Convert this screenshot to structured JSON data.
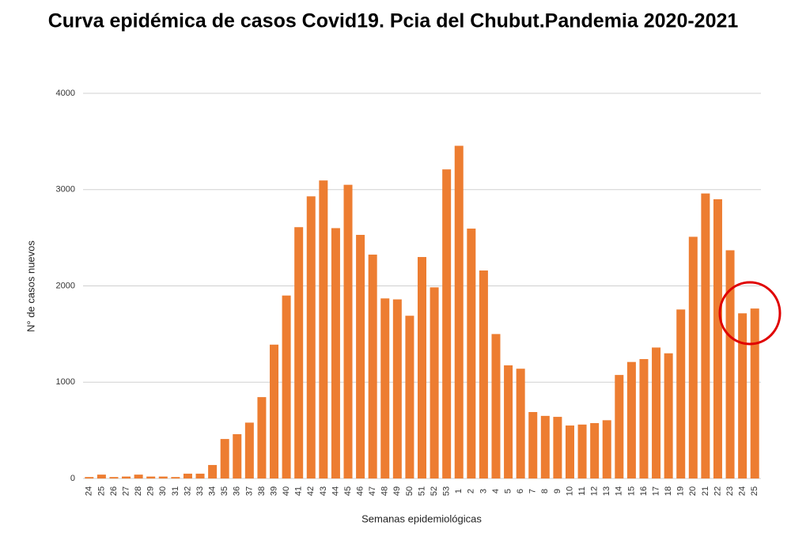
{
  "chart_data": {
    "type": "bar",
    "title": "Curva epidémica de casos Covid19. Pcia del Chubut.Pandemia 2020-2021",
    "x_label": "Semanas epidemiológicas",
    "y_label": "N° de casos nuevos",
    "categories": [
      "24",
      "25",
      "26",
      "27",
      "28",
      "29",
      "30",
      "31",
      "32",
      "33",
      "34",
      "35",
      "36",
      "37",
      "38",
      "39",
      "40",
      "41",
      "42",
      "43",
      "44",
      "45",
      "46",
      "47",
      "48",
      "49",
      "50",
      "51",
      "52",
      "53",
      "1",
      "2",
      "3",
      "4",
      "5",
      "6",
      "7",
      "8",
      "9",
      "10",
      "11",
      "12",
      "13",
      "14",
      "15",
      "16",
      "17",
      "18",
      "19",
      "20",
      "21",
      "22",
      "23",
      "24",
      "25"
    ],
    "values": [
      15,
      40,
      15,
      20,
      40,
      20,
      20,
      15,
      50,
      50,
      140,
      410,
      460,
      580,
      845,
      1390,
      1900,
      2610,
      2930,
      3095,
      2600,
      3050,
      2530,
      2325,
      1870,
      1860,
      1690,
      2300,
      1985,
      3210,
      3455,
      2595,
      2160,
      1500,
      1175,
      1140,
      690,
      650,
      640,
      550,
      560,
      575,
      605,
      1075,
      1210,
      1240,
      1360,
      1300,
      1755,
      2510,
      2960,
      2900,
      2370,
      1715,
      1765
    ],
    "color": "#ed7d31",
    "ylim": [
      0,
      4000
    ],
    "yticks": [
      0,
      1000,
      2000,
      3000,
      4000
    ],
    "grid": true
  }
}
